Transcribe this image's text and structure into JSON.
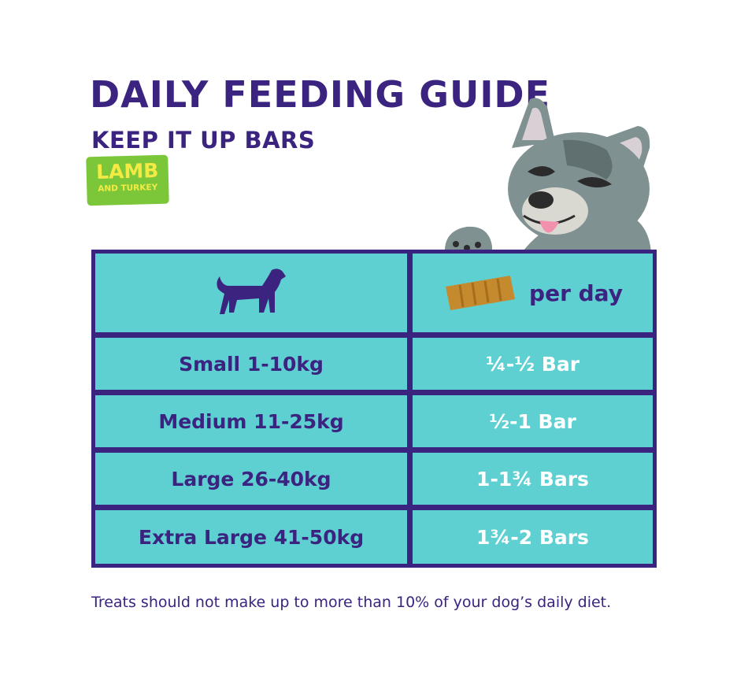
{
  "title": "DAILY FEEDING GUIDE",
  "subtitle": "KEEP IT UP BARS",
  "badge": {
    "main": "LAMB",
    "sub": "AND TURKEY"
  },
  "table": {
    "header_right": "per day",
    "rows": [
      {
        "size": "Small 1-10kg",
        "amount": "¼-½ Bar"
      },
      {
        "size": "Medium 11-25kg",
        "amount": "½-1 Bar"
      },
      {
        "size": "Large 26-40kg",
        "amount": "1-1¾ Bars"
      },
      {
        "size": "Extra Large 41-50kg",
        "amount": "1¾-2 Bars"
      }
    ]
  },
  "footnote": "Treats should not make up to more than 10% of your dog’s daily diet.",
  "colors": {
    "purple": "#3b2380",
    "teal": "#5fd0d1",
    "green": "#7cc63a",
    "yellow": "#f3ea43"
  }
}
